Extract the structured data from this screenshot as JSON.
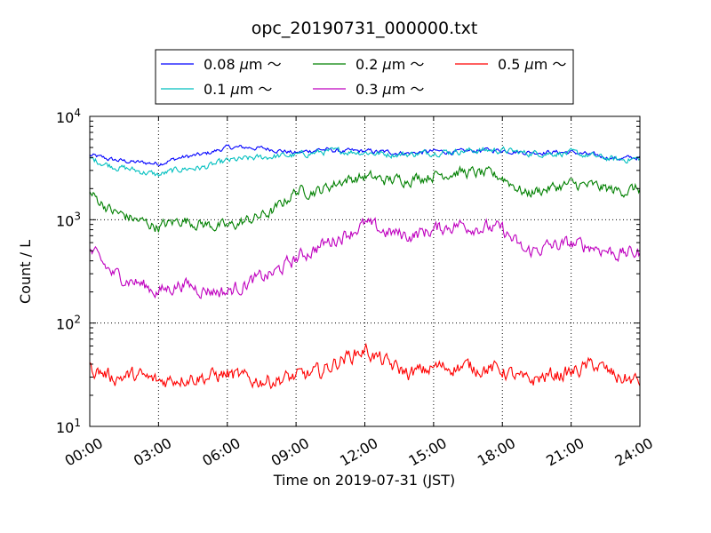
{
  "chart_data": {
    "type": "line",
    "title": "opc_20190731_000000.txt",
    "xlabel": "Time on 2019-07-31 (JST)",
    "ylabel": "Count / L",
    "yscale": "log",
    "xlim": [
      0,
      24
    ],
    "ylim": [
      10,
      10000
    ],
    "grid": true,
    "legend_position": "top",
    "x_ticks": [
      "00:00",
      "03:00",
      "06:00",
      "09:00",
      "12:00",
      "15:00",
      "18:00",
      "21:00",
      "24:00"
    ],
    "y_ticks": [
      {
        "base": "10",
        "exp": "1",
        "value": 10
      },
      {
        "base": "10",
        "exp": "2",
        "value": 100
      },
      {
        "base": "10",
        "exp": "3",
        "value": 1000
      },
      {
        "base": "10",
        "exp": "4",
        "value": 10000
      }
    ],
    "x": [
      0,
      1,
      2,
      3,
      4,
      5,
      6,
      7,
      8,
      9,
      10,
      11,
      12,
      13,
      14,
      15,
      16,
      17,
      18,
      19,
      20,
      21,
      22,
      23,
      24
    ],
    "series": [
      {
        "name": "0.08 μm ～",
        "color": "#0000ff",
        "legend_main": "0.08",
        "values": [
          4200,
          3800,
          3600,
          3500,
          4000,
          4300,
          5000,
          5000,
          4800,
          4400,
          4800,
          4600,
          4600,
          4500,
          4400,
          4600,
          4500,
          4700,
          4700,
          4500,
          4500,
          4500,
          4200,
          3900,
          4000
        ]
      },
      {
        "name": "0.1 μm ～",
        "color": "#00bfbf",
        "legend_main": "0.1",
        "values": [
          3900,
          3300,
          3000,
          2700,
          3100,
          3200,
          3700,
          3900,
          4100,
          4200,
          4500,
          4600,
          4500,
          4300,
          4300,
          4500,
          4600,
          4700,
          4700,
          4400,
          4400,
          4400,
          4100,
          3800,
          3900
        ]
      },
      {
        "name": "0.2 μm ～",
        "color": "#008000",
        "legend_main": "0.2",
        "values": [
          1800,
          1200,
          1000,
          850,
          1000,
          900,
          850,
          1000,
          1200,
          1900,
          1900,
          2400,
          2600,
          2400,
          2500,
          2700,
          2900,
          2800,
          2600,
          1800,
          2000,
          2200,
          2100,
          1900,
          2000
        ]
      },
      {
        "name": "0.3 μm ～",
        "color": "#bf00bf",
        "legend_main": "0.3",
        "values": [
          500,
          300,
          250,
          200,
          240,
          210,
          200,
          250,
          300,
          420,
          550,
          700,
          900,
          750,
          700,
          800,
          900,
          850,
          800,
          480,
          550,
          580,
          550,
          470,
          480
        ]
      },
      {
        "name": "0.5 μm ～",
        "color": "#ff0000",
        "legend_main": "0.5",
        "values": [
          37,
          30,
          31,
          27,
          30,
          30,
          32,
          28,
          28,
          30,
          33,
          45,
          55,
          40,
          32,
          37,
          38,
          37,
          35,
          27,
          31,
          33,
          40,
          30,
          27
        ]
      }
    ]
  }
}
